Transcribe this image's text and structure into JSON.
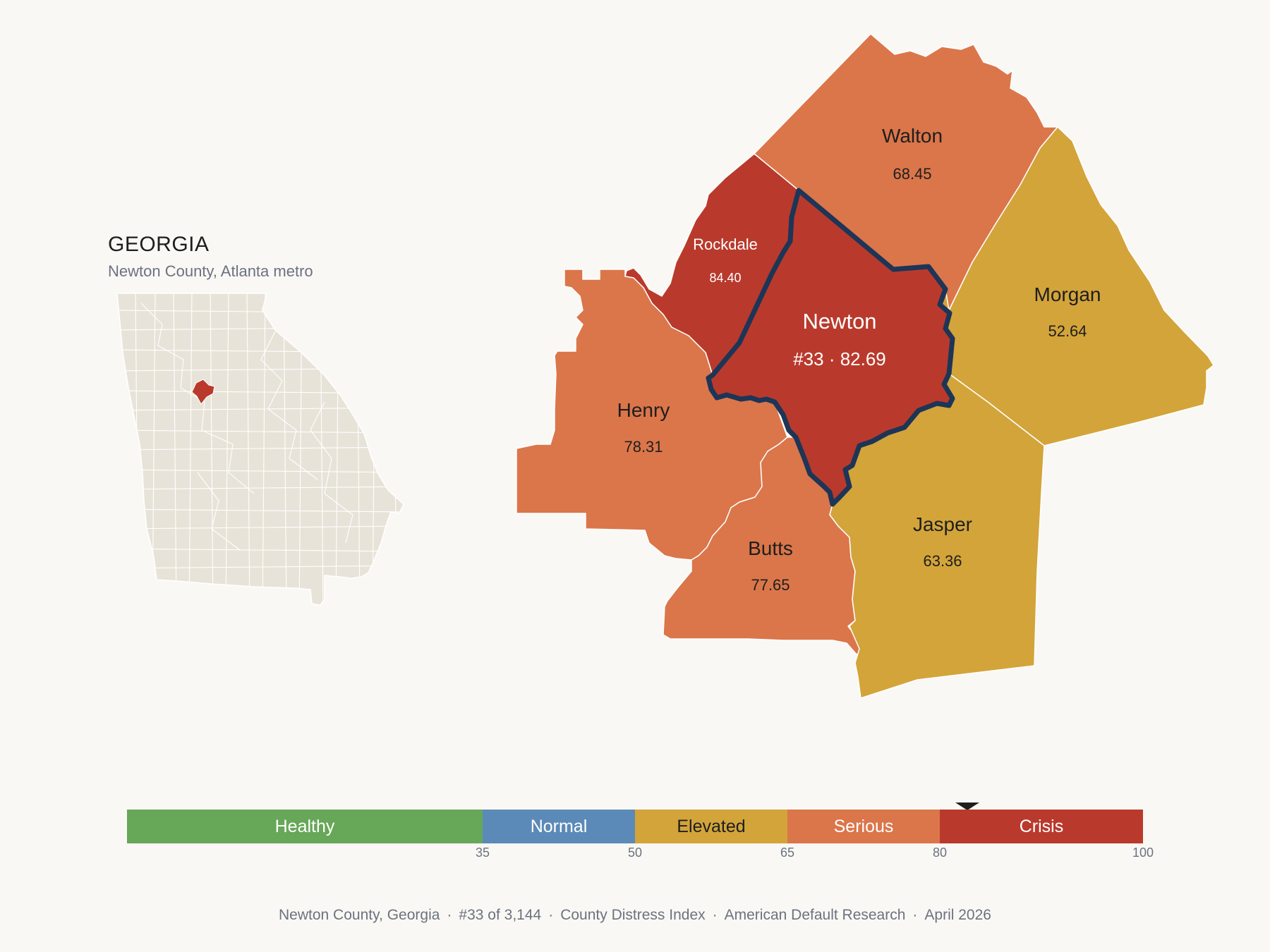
{
  "inset": {
    "title": "GEORGIA",
    "subtitle": "Newton County, Atlanta metro"
  },
  "colors": {
    "background": "#faf8f4",
    "healthy": "#67a758",
    "normal": "#5c8ab8",
    "elevated": "#d3a43a",
    "serious": "#db764a",
    "crisis": "#b93a2c",
    "highlight_border": "#1d3557",
    "state_fill": "#e8e3d8"
  },
  "counties": {
    "walton": {
      "name": "Walton",
      "value": "68.45",
      "category": "serious"
    },
    "rockdale": {
      "name": "Rockdale",
      "value": "84.40",
      "category": "crisis"
    },
    "newton": {
      "name": "Newton",
      "value": "#33 · 82.69",
      "category": "crisis"
    },
    "morgan": {
      "name": "Morgan",
      "value": "52.64",
      "category": "elevated"
    },
    "henry": {
      "name": "Henry",
      "value": "78.31",
      "category": "serious"
    },
    "butts": {
      "name": "Butts",
      "value": "77.65",
      "category": "serious"
    },
    "jasper": {
      "name": "Jasper",
      "value": "63.36",
      "category": "elevated"
    }
  },
  "scale": {
    "segments": [
      {
        "label": "Healthy",
        "min": 0,
        "max": 35,
        "color": "#67a758"
      },
      {
        "label": "Normal",
        "min": 35,
        "max": 50,
        "color": "#5c8ab8"
      },
      {
        "label": "Elevated",
        "min": 50,
        "max": 65,
        "color": "#d3a43a"
      },
      {
        "label": "Serious",
        "min": 65,
        "max": 80,
        "color": "#db764a"
      },
      {
        "label": "Crisis",
        "min": 80,
        "max": 100,
        "color": "#b93a2c"
      }
    ],
    "ticks": [
      "35",
      "50",
      "65",
      "80",
      "100"
    ],
    "marker_value": 82.69
  },
  "footer": {
    "county": "Newton County, Georgia",
    "rank": "#33 of 3,144",
    "index": "County Distress Index",
    "source": "American Default Research",
    "date": "April 2026"
  }
}
